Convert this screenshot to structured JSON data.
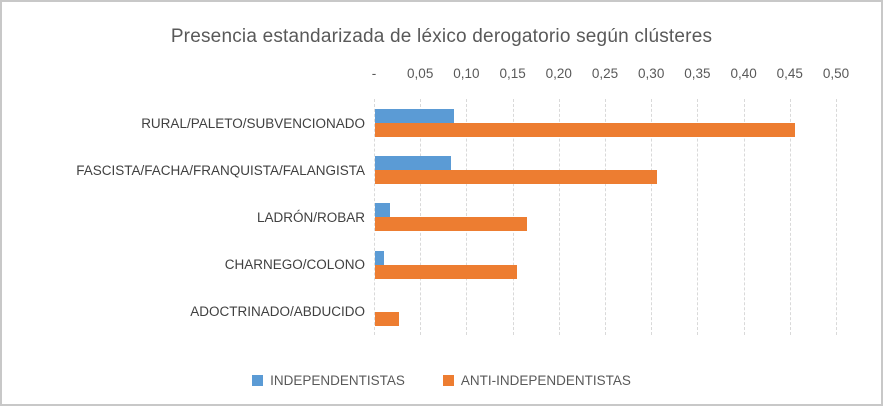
{
  "chart_data": {
    "type": "bar",
    "orientation": "horizontal",
    "title": "Presencia estandarizada de léxico derogatorio según clústeres",
    "categories": [
      "RURAL/PALETO/SUBVENCIONADO",
      "FASCISTA/FACHA/FRANQUISTA/FALANGISTA",
      "LADRÓN/ROBAR",
      "CHARNEGO/COLONO",
      "ADOCTRINADO/ABDUCIDO"
    ],
    "series": [
      {
        "name": "INDEPENDENTISTAS",
        "color": "#5B9BD5",
        "values": [
          0.085,
          0.082,
          0.016,
          0.01,
          0.0
        ]
      },
      {
        "name": "ANTI-INDEPENDENTISTAS",
        "color": "#ED7D31",
        "values": [
          0.455,
          0.305,
          0.164,
          0.154,
          0.026
        ]
      }
    ],
    "x_axis": {
      "min": 0,
      "max": 0.5,
      "step": 0.05,
      "position": "top",
      "grid": true,
      "tick_labels": [
        "-",
        "0,05",
        "0,10",
        "0,15",
        "0,20",
        "0,25",
        "0,30",
        "0,35",
        "0,40",
        "0,45",
        "0,50"
      ]
    },
    "legend": {
      "position": "bottom",
      "entries": [
        "INDEPENDENTISTAS",
        "ANTI-INDEPENDENTISTAS"
      ]
    },
    "colors": {
      "text": "#595959",
      "gridline": "#D9D9D9",
      "frame_border": "#C8C8C8",
      "background": "#FFFFFF"
    }
  }
}
